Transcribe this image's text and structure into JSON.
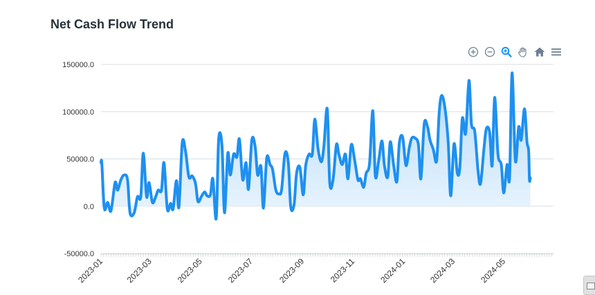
{
  "title": "Net Cash Flow Trend",
  "toolbar": [
    {
      "name": "zoom-in-icon"
    },
    {
      "name": "zoom-out-icon"
    },
    {
      "name": "selection-zoom-icon"
    },
    {
      "name": "pan-hand-icon"
    },
    {
      "name": "reset-zoom-home-icon"
    },
    {
      "name": "menu-icon"
    }
  ],
  "colors": {
    "line": "#1E90F0",
    "fill_top": "#A8D4F8",
    "fill_bottom": "#E6F3FD",
    "grid": "#D9DEE3",
    "axis_text": "#333333",
    "toolbar_icon": "#6E8192",
    "toolbar_active": "#008FFB"
  },
  "chart_data": {
    "type": "area",
    "title": "Net Cash Flow Trend",
    "xlabel": "",
    "ylabel": "",
    "ylim": [
      -50000,
      150000
    ],
    "yticks": [
      -50000,
      0,
      50000,
      100000,
      150000
    ],
    "ytick_labels": [
      "-50000.0",
      "0.0",
      "50000.0",
      "100000.0",
      "150000.0"
    ],
    "xlim": [
      "2023-01-01",
      "2024-06-30"
    ],
    "xticks": [
      "2023-01",
      "2023-03",
      "2023-05",
      "2023-07",
      "2023-09",
      "2023-11",
      "2024-01",
      "2024-03",
      "2024-05"
    ],
    "grid": true,
    "legend": "none",
    "series": [
      {
        "values": [
          [
            "2023-01-01",
            46000
          ],
          [
            "2023-01-02",
            45000
          ],
          [
            "2023-01-05",
            -2000
          ],
          [
            "2023-01-09",
            4000
          ],
          [
            "2023-01-13",
            -5000
          ],
          [
            "2023-01-18",
            25000
          ],
          [
            "2023-01-21",
            17000
          ],
          [
            "2023-01-25",
            28000
          ],
          [
            "2023-01-29",
            33000
          ],
          [
            "2023-02-02",
            28000
          ],
          [
            "2023-02-05",
            -7000
          ],
          [
            "2023-02-10",
            -7000
          ],
          [
            "2023-02-14",
            10000
          ],
          [
            "2023-02-18",
            10000
          ],
          [
            "2023-02-21",
            56000
          ],
          [
            "2023-02-25",
            10000
          ],
          [
            "2023-02-28",
            25000
          ],
          [
            "2023-03-04",
            4000
          ],
          [
            "2023-03-08",
            10000
          ],
          [
            "2023-03-11",
            17000
          ],
          [
            "2023-03-15",
            17000
          ],
          [
            "2023-03-18",
            46000
          ],
          [
            "2023-03-22",
            -3000
          ],
          [
            "2023-03-26",
            3000
          ],
          [
            "2023-03-29",
            -3000
          ],
          [
            "2023-04-02",
            27000
          ],
          [
            "2023-04-05",
            -1000
          ],
          [
            "2023-04-09",
            67000
          ],
          [
            "2023-04-13",
            58000
          ],
          [
            "2023-04-17",
            31000
          ],
          [
            "2023-04-21",
            32000
          ],
          [
            "2023-04-25",
            24000
          ],
          [
            "2023-04-28",
            5000
          ],
          [
            "2023-05-02",
            10000
          ],
          [
            "2023-05-06",
            15000
          ],
          [
            "2023-05-09",
            11000
          ],
          [
            "2023-05-13",
            12000
          ],
          [
            "2023-05-16",
            29000
          ],
          [
            "2023-05-20",
            -13000
          ],
          [
            "2023-05-23",
            71000
          ],
          [
            "2023-05-27",
            64000
          ],
          [
            "2023-05-30",
            -7000
          ],
          [
            "2023-06-03",
            56000
          ],
          [
            "2023-06-06",
            33000
          ],
          [
            "2023-06-10",
            55000
          ],
          [
            "2023-06-14",
            52000
          ],
          [
            "2023-06-17",
            71000
          ],
          [
            "2023-06-21",
            28000
          ],
          [
            "2023-06-25",
            46000
          ],
          [
            "2023-06-28",
            18000
          ],
          [
            "2023-07-02",
            70000
          ],
          [
            "2023-07-06",
            63000
          ],
          [
            "2023-07-09",
            33000
          ],
          [
            "2023-07-13",
            42000
          ],
          [
            "2023-07-16",
            -2000
          ],
          [
            "2023-07-20",
            51000
          ],
          [
            "2023-07-24",
            44000
          ],
          [
            "2023-07-27",
            39000
          ],
          [
            "2023-07-31",
            17000
          ],
          [
            "2023-08-04",
            13000
          ],
          [
            "2023-08-07",
            18000
          ],
          [
            "2023-08-11",
            56000
          ],
          [
            "2023-08-15",
            46000
          ],
          [
            "2023-08-18",
            -1000
          ],
          [
            "2023-08-22",
            2000
          ],
          [
            "2023-08-25",
            35000
          ],
          [
            "2023-08-29",
            41000
          ],
          [
            "2023-09-02",
            12000
          ],
          [
            "2023-09-05",
            43000
          ],
          [
            "2023-09-09",
            55000
          ],
          [
            "2023-09-13",
            55000
          ],
          [
            "2023-09-16",
            92000
          ],
          [
            "2023-09-20",
            60000
          ],
          [
            "2023-09-24",
            47000
          ],
          [
            "2023-09-27",
            64000
          ],
          [
            "2023-10-01",
            103000
          ],
          [
            "2023-10-04",
            25000
          ],
          [
            "2023-10-08",
            28000
          ],
          [
            "2023-10-12",
            65000
          ],
          [
            "2023-10-15",
            55000
          ],
          [
            "2023-10-19",
            44000
          ],
          [
            "2023-10-23",
            55000
          ],
          [
            "2023-10-26",
            29000
          ],
          [
            "2023-10-30",
            65000
          ],
          [
            "2023-11-03",
            49000
          ],
          [
            "2023-11-07",
            28000
          ],
          [
            "2023-11-10",
            29000
          ],
          [
            "2023-11-14",
            20000
          ],
          [
            "2023-11-17",
            35000
          ],
          [
            "2023-11-21",
            45000
          ],
          [
            "2023-11-25",
            101000
          ],
          [
            "2023-11-28",
            32000
          ],
          [
            "2023-12-02",
            48000
          ],
          [
            "2023-12-06",
            69000
          ],
          [
            "2023-12-09",
            43000
          ],
          [
            "2023-12-13",
            31000
          ],
          [
            "2023-12-16",
            68000
          ],
          [
            "2023-12-20",
            44000
          ],
          [
            "2023-12-24",
            26000
          ],
          [
            "2023-12-27",
            67000
          ],
          [
            "2023-12-31",
            73000
          ],
          [
            "2024-01-04",
            43000
          ],
          [
            "2024-01-08",
            62000
          ],
          [
            "2024-01-11",
            72000
          ],
          [
            "2024-01-15",
            72000
          ],
          [
            "2024-01-19",
            65000
          ],
          [
            "2024-01-22",
            29000
          ],
          [
            "2024-01-26",
            87000
          ],
          [
            "2024-01-30",
            84000
          ],
          [
            "2024-02-02",
            70000
          ],
          [
            "2024-02-06",
            60000
          ],
          [
            "2024-02-10",
            48000
          ],
          [
            "2024-02-13",
            98000
          ],
          [
            "2024-02-16",
            117000
          ],
          [
            "2024-02-20",
            104000
          ],
          [
            "2024-02-24",
            67000
          ],
          [
            "2024-02-27",
            11000
          ],
          [
            "2024-03-02",
            66000
          ],
          [
            "2024-03-06",
            35000
          ],
          [
            "2024-03-09",
            41000
          ],
          [
            "2024-03-12",
            93000
          ],
          [
            "2024-03-16",
            77000
          ],
          [
            "2024-03-20",
            133000
          ],
          [
            "2024-03-23",
            87000
          ],
          [
            "2024-03-27",
            79000
          ],
          [
            "2024-03-31",
            37000
          ],
          [
            "2024-04-03",
            24000
          ],
          [
            "2024-04-07",
            60000
          ],
          [
            "2024-04-10",
            82000
          ],
          [
            "2024-04-14",
            78000
          ],
          [
            "2024-04-17",
            43000
          ],
          [
            "2024-04-20",
            115000
          ],
          [
            "2024-04-24",
            55000
          ],
          [
            "2024-04-28",
            44000
          ],
          [
            "2024-05-01",
            14000
          ],
          [
            "2024-05-05",
            44000
          ],
          [
            "2024-05-08",
            30000
          ],
          [
            "2024-05-11",
            141000
          ],
          [
            "2024-05-15",
            48000
          ],
          [
            "2024-05-19",
            84000
          ],
          [
            "2024-05-22",
            70000
          ],
          [
            "2024-05-26",
            103000
          ],
          [
            "2024-05-29",
            68000
          ],
          [
            "2024-05-31",
            59000
          ],
          [
            "2024-06-01",
            28000
          ],
          [
            "2024-06-02",
            30000
          ]
        ]
      }
    ]
  }
}
